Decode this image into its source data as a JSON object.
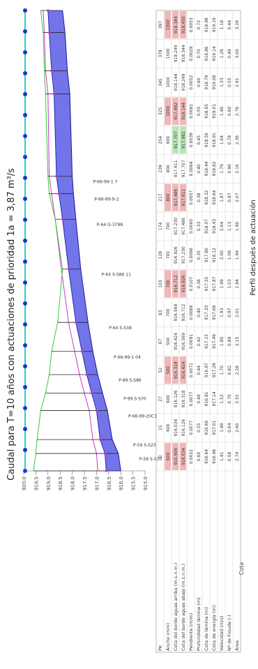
{
  "chart_data": {
    "type": "line",
    "orientation": "rotated-90-ccw",
    "title": "Caudal para T=10 años con actuaciones de prioridad 1a = 3,87 m³/s",
    "subtitle": "",
    "xlabel": "Perfil después de actuación",
    "ylabel": "Cota",
    "ylim": [
      915.0,
      920.0
    ],
    "yticks": [
      "915.0",
      "915.5",
      "916.0",
      "916.5",
      "917.0",
      "917.5",
      "918.0",
      "918.5",
      "919.0",
      "919.5",
      "920.0"
    ],
    "grid": false,
    "x": [
      0,
      15,
      27,
      52,
      67,
      83,
      103,
      128,
      174,
      217,
      239,
      254,
      325,
      345,
      378,
      397
    ],
    "series": [
      {
        "values": [
          916.0,
          916.1,
          916.35,
          916.55,
          916.75,
          916.95,
          917.15,
          917.35,
          917.65,
          917.85,
          917.95,
          918.0,
          918.1,
          918.2,
          918.3,
          918.4
        ]
      },
      {
        "values": [
          916.6,
          916.65,
          916.85,
          917.0,
          917.2,
          917.4,
          917.6,
          917.85,
          918.15,
          918.4,
          918.55,
          918.65,
          918.75,
          918.85,
          918.95,
          919.0
        ]
      },
      {
        "values": [
          916.95,
          917.0,
          917.15,
          917.3,
          917.5,
          917.7,
          917.9,
          918.15,
          918.45,
          918.7,
          918.85,
          918.95,
          919.0,
          919.1,
          919.15,
          919.2
        ]
      },
      {
        "values": [
          919.6,
          919.5,
          919.45,
          919.3,
          919.1,
          918.95,
          918.85,
          918.6,
          918.4,
          918.7,
          918.95,
          919.0,
          919.1,
          919.15,
          919.2,
          919.3
        ]
      }
    ],
    "annotations": [
      "P-59 S-S30",
      "P-59 S-S23",
      "P-66-99-20C1",
      "P-99 S-S70",
      "P-99 S-S86",
      "P-66-99-1 04",
      "P-64 S-S38",
      "P-64 S-S86 11",
      "P-64 G-3798",
      "P-66-99-9-2",
      "P-66-99-1 7"
    ],
    "table": {
      "row_labels": [
        "PK",
        "Ancho (mm)",
        "Cota del borde aguas arriba (m.s.n.m.)",
        "Cota del borde aguas abajo (m.s.n.m.)",
        "Pendiente (m/m)",
        "Profundidad lámina (m)",
        "Cota de lámina (m)",
        "Cota de energía (m)",
        "Velocidad (m/s)",
        "Nº de Froude (-)",
        "Área"
      ],
      "columns": [
        {
          "pk": "0",
          "ancho": "600"
        },
        {
          "pk": "15",
          "ancho": "600"
        },
        {
          "pk": "27",
          "ancho": "600"
        },
        {
          "pk": "52",
          "ancho": "500"
        },
        {
          "pk": "67",
          "ancho": "500"
        },
        {
          "pk": "83",
          "ancho": "700"
        },
        {
          "pk": "103",
          "ancho": "700"
        },
        {
          "pk": "128",
          "ancho": "700"
        },
        {
          "pk": "174",
          "ancho": "700"
        },
        {
          "pk": "217",
          "ancho": "800"
        },
        {
          "pk": "239",
          "ancho": "800"
        },
        {
          "pk": "254",
          "ancho": "900"
        },
        {
          "pk": "325",
          "ancho": "1000"
        },
        {
          "pk": "345",
          "ancho": "1000"
        },
        {
          "pk": "378",
          "ancho": "1500"
        },
        {
          "pk": "397",
          "ancho": "1500"
        }
      ],
      "values": {
        "cota_arriba": [
          "915.956",
          "916.034",
          "916.126",
          "916.318",
          "916.424",
          "916.569",
          "916.712",
          "916.926",
          "917.230",
          "917.486",
          "917.611",
          "917.707",
          "917.982",
          "918.144",
          "918.249",
          "918.344"
        ],
        "cota_abajo": [
          "916.034",
          "916.126",
          "916.318",
          "916.424",
          "916.569",
          "916.712",
          "916.926",
          "917.230",
          "917.486",
          "917.611",
          "917.707",
          "917.982",
          "918.144",
          "918.249",
          "918.344",
          "918.450"
        ],
        "pendiente": [
          "0.0052",
          "0.0077",
          "0.0077",
          "0.0071",
          "0.0091",
          "0.0089",
          "0.0107",
          "0.0066",
          "0.0060",
          "0.0057",
          "0.0064",
          "0.0039",
          "0.0081",
          "0.0052",
          "0.0029",
          "0.0053"
        ],
        "profundidad": [
          "0.60",
          "0.55",
          "0.48",
          "0.44",
          "0.42",
          "0.40",
          "0.38",
          "0.35",
          "0.33",
          "0.38",
          "0.40",
          "0.45",
          "0.55",
          "0.60",
          "0.70",
          "0.72"
        ],
        "cota_lamina": [
          "916.64",
          "916.66",
          "916.81",
          "916.97",
          "917.15",
          "917.33",
          "917.55",
          "917.80",
          "918.07",
          "918.32",
          "918.44",
          "918.56",
          "918.65",
          "918.79",
          "918.86",
          "918.98"
        ],
        "cota_energia": [
          "916.98",
          "917.01",
          "917.14",
          "917.29",
          "917.49",
          "917.68",
          "917.87",
          "918.12",
          "918.43",
          "918.64",
          "918.82",
          "918.91",
          "919.01",
          "919.08",
          "919.14",
          "919.19"
        ],
        "velocidad": [
          "1.41",
          "1.49",
          "1.52",
          "1.70",
          "1.80",
          "1.93",
          "1.99",
          "2.00",
          "2.04",
          "1.87",
          "1.79",
          "1.64",
          "1.40",
          "1.33",
          "1.29",
          "1.18"
        ],
        "froude": [
          "0.58",
          "0.64",
          "0.70",
          "0.82",
          "0.89",
          "0.97",
          "1.03",
          "1.08",
          "1.13",
          "0.97",
          "0.90",
          "0.78",
          "0.60",
          "0.55",
          "0.49",
          "0.44"
        ],
        "area": [
          "2.74",
          "2.60",
          "2.55",
          "2.28",
          "2.15",
          "2.01",
          "1.94",
          "1.94",
          "1.90",
          "2.07",
          "2.16",
          "2.36",
          "2.76",
          "2.91",
          "3.00",
          "3.28"
        ]
      }
    },
    "colors": {
      "water_fill": "#5a5ae6",
      "energy_line": "#cc33cc",
      "terrain_line": "#33cc33",
      "top_band": "#33cccc",
      "marker": "#1a35c8",
      "highlight": "#f0b8b8",
      "highlight_green": "#b8e6b8"
    }
  }
}
